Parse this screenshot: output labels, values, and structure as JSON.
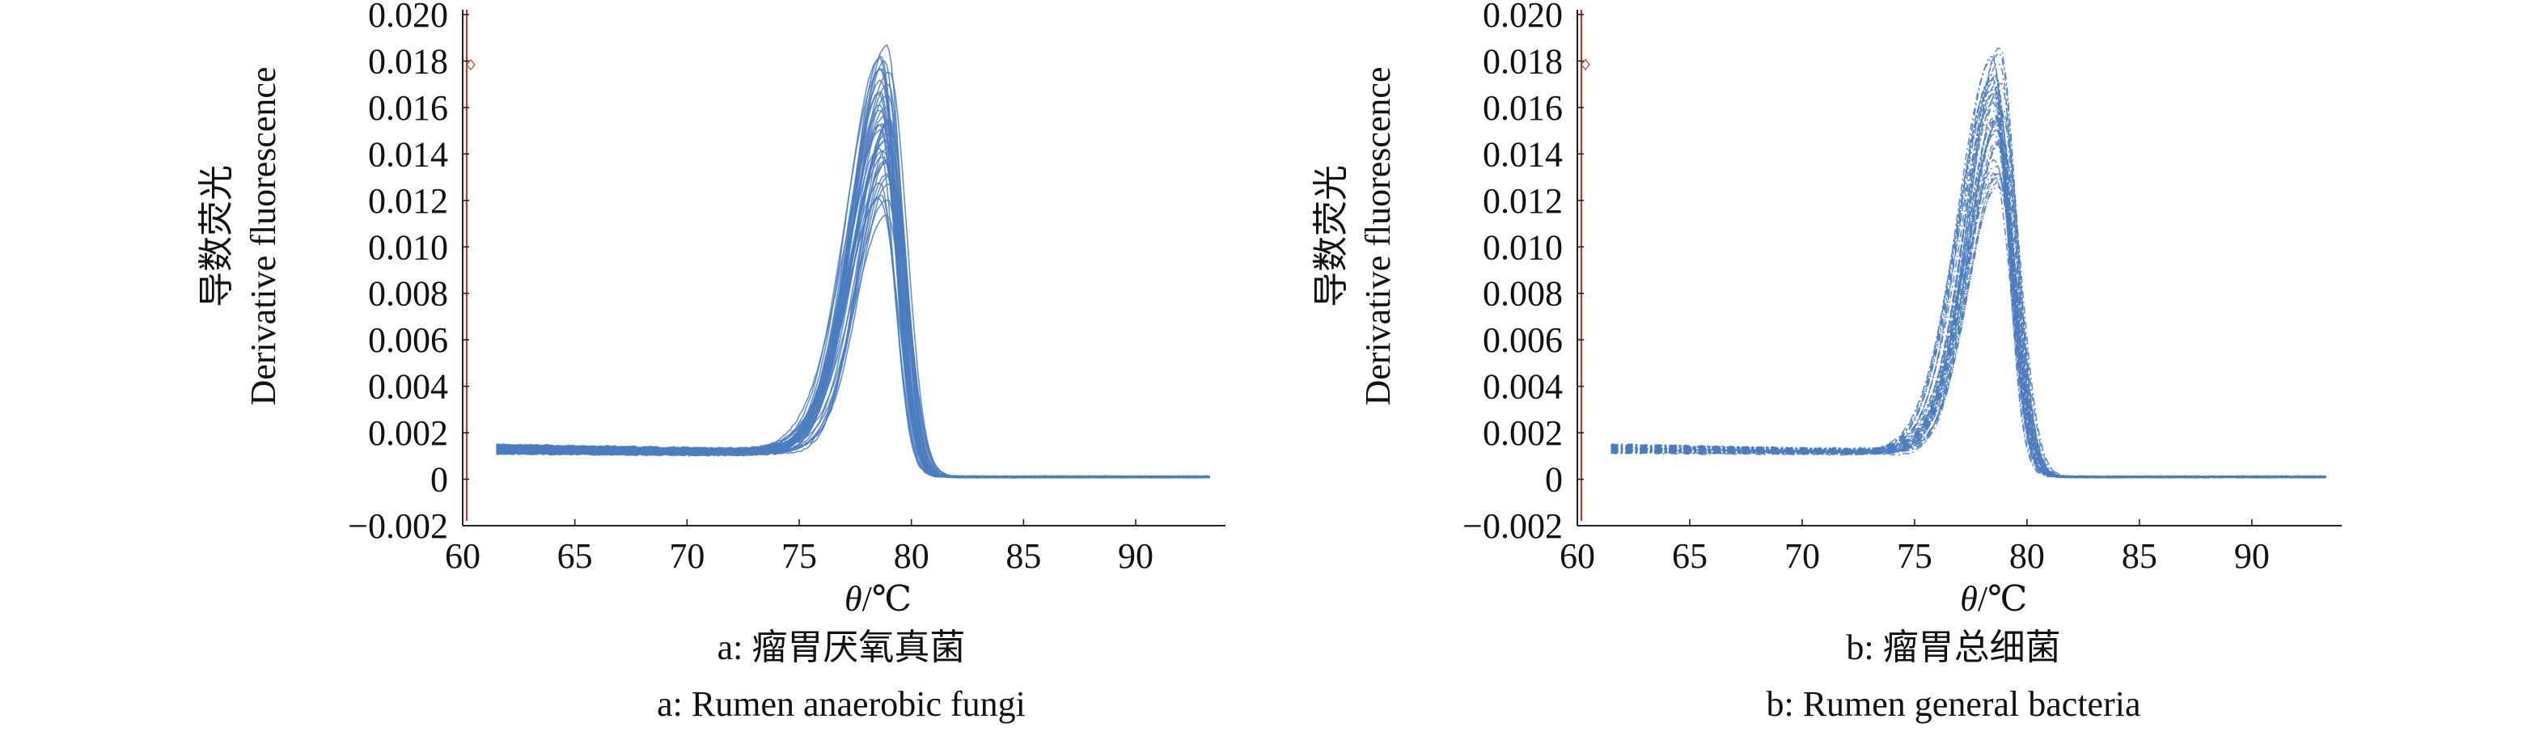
{
  "chart_data": [
    {
      "type": "line",
      "panel": "a",
      "ylabel_cn": "导数荧光",
      "ylabel_en": "Derivative fluorescence",
      "xlabel_var": "θ",
      "xlabel_unit": "/℃",
      "caption_cn": "a: 瘤胃厌氧真菌",
      "caption_en": "a: Rumen anaerobic fungi",
      "xlim": [
        60,
        94
      ],
      "ylim": [
        -0.002,
        0.02
      ],
      "x_ticks": [
        60,
        65,
        70,
        75,
        80,
        85,
        90
      ],
      "x_tick_labels": [
        "60",
        "65",
        "70",
        "75",
        "80",
        "85",
        "90"
      ],
      "y_ticks": [
        -0.002,
        0,
        0.002,
        0.004,
        0.006,
        0.008,
        0.01,
        0.012,
        0.014,
        0.016,
        0.018,
        0.02
      ],
      "y_tick_labels": [
        "−0.002",
        "0",
        "0.002",
        "0.004",
        "0.006",
        "0.008",
        "0.010",
        "0.012",
        "0.014",
        "0.016",
        "0.018",
        "0.020"
      ],
      "grid": false,
      "line_color": "#4a7cc0",
      "marker_color": "#c0392b",
      "curve_count": 40,
      "x_range": [
        61.5,
        93.3
      ],
      "peak_x": 78.8,
      "peak_y_min": 0.0112,
      "peak_y_max": 0.0188,
      "baseline_y": [
        0.0013,
        0.0011
      ],
      "tail_y": 0.0001,
      "line_style": "solid"
    },
    {
      "type": "line",
      "panel": "b",
      "ylabel_cn": "导数荧光",
      "ylabel_en": "Derivative fluorescence",
      "xlabel_var": "θ",
      "xlabel_unit": "/℃",
      "caption_cn": "b: 瘤胃总细菌",
      "caption_en": "b: Rumen general bacteria",
      "xlim": [
        60,
        94
      ],
      "ylim": [
        -0.002,
        0.02
      ],
      "x_ticks": [
        60,
        65,
        70,
        75,
        80,
        85,
        90
      ],
      "x_tick_labels": [
        "60",
        "65",
        "70",
        "75",
        "80",
        "85",
        "90"
      ],
      "y_ticks": [
        -0.002,
        0,
        0.002,
        0.004,
        0.006,
        0.008,
        0.01,
        0.012,
        0.014,
        0.016,
        0.018,
        0.02
      ],
      "y_tick_labels": [
        "−0.002",
        "0",
        "0.002",
        "0.004",
        "0.006",
        "0.008",
        "0.010",
        "0.012",
        "0.014",
        "0.016",
        "0.018",
        "0.020"
      ],
      "grid": false,
      "line_color": "#4a7cc0",
      "marker_color": "#c0392b",
      "curve_count": 40,
      "x_range": [
        61.5,
        93.3
      ],
      "peak_x": 78.7,
      "peak_y_min": 0.0115,
      "peak_y_max": 0.0188,
      "baseline_y": [
        0.0013,
        0.0011
      ],
      "tail_y": 0.0001,
      "line_style": "dash-dot"
    }
  ]
}
